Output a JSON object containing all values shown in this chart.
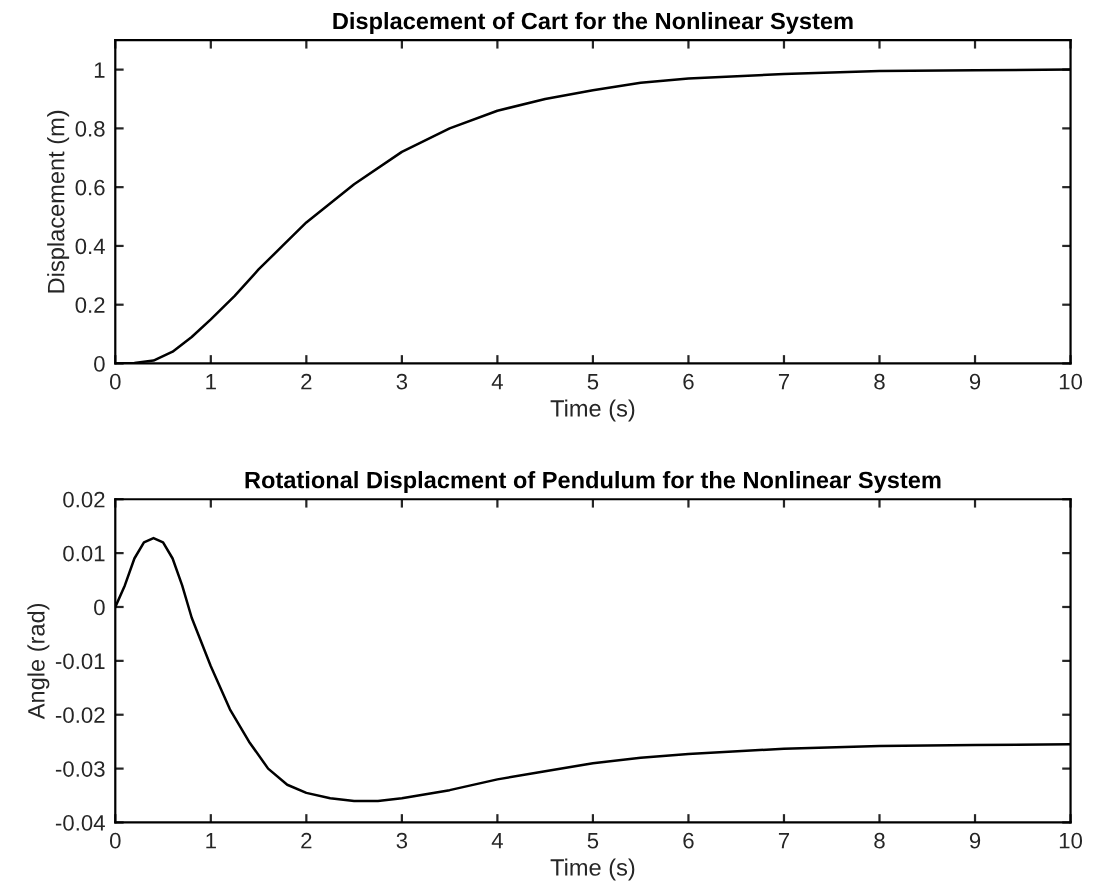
{
  "chart_data": [
    {
      "type": "line",
      "title": "Displacement of Cart for the Nonlinear System",
      "xlabel": "Time (s)",
      "ylabel": "Displacement (m)",
      "xlim": [
        0,
        10
      ],
      "ylim": [
        0,
        1.1
      ],
      "xticks": [
        0,
        1,
        2,
        3,
        4,
        5,
        6,
        7,
        8,
        9,
        10
      ],
      "yticks": [
        0,
        0.2,
        0.4,
        0.6,
        0.8,
        1
      ],
      "grid": false,
      "legend": false,
      "series": [
        {
          "color": "#000000",
          "x": [
            0,
            0.2,
            0.4,
            0.6,
            0.8,
            1.0,
            1.25,
            1.5,
            1.75,
            2.0,
            2.5,
            3.0,
            3.5,
            4.0,
            4.5,
            5.0,
            5.5,
            6.0,
            7.0,
            8.0,
            9.0,
            10
          ],
          "values": [
            0,
            0.002,
            0.01,
            0.04,
            0.09,
            0.15,
            0.23,
            0.32,
            0.4,
            0.48,
            0.61,
            0.72,
            0.8,
            0.86,
            0.9,
            0.93,
            0.955,
            0.97,
            0.985,
            0.995,
            0.998,
            1.0
          ]
        }
      ]
    },
    {
      "type": "line",
      "title": "Rotational Displacment of Pendulum for the Nonlinear System",
      "xlabel": "Time (s)",
      "ylabel": "Angle (rad)",
      "xlim": [
        0,
        10
      ],
      "ylim": [
        -0.04,
        0.02
      ],
      "xticks": [
        0,
        1,
        2,
        3,
        4,
        5,
        6,
        7,
        8,
        9,
        10
      ],
      "yticks": [
        -0.04,
        -0.03,
        -0.02,
        -0.01,
        0,
        0.01,
        0.02
      ],
      "grid": false,
      "legend": false,
      "series": [
        {
          "color": "#000000",
          "x": [
            0,
            0.1,
            0.2,
            0.3,
            0.4,
            0.5,
            0.6,
            0.7,
            0.8,
            1.0,
            1.2,
            1.4,
            1.6,
            1.8,
            2.0,
            2.25,
            2.5,
            2.75,
            3.0,
            3.5,
            4.0,
            4.5,
            5.0,
            5.5,
            6.0,
            7.0,
            8.0,
            9.0,
            10
          ],
          "values": [
            0,
            0.004,
            0.009,
            0.012,
            0.0128,
            0.012,
            0.009,
            0.004,
            -0.002,
            -0.011,
            -0.019,
            -0.025,
            -0.03,
            -0.033,
            -0.0345,
            -0.0355,
            -0.036,
            -0.036,
            -0.0355,
            -0.034,
            -0.032,
            -0.0305,
            -0.029,
            -0.028,
            -0.0273,
            -0.0263,
            -0.0258,
            -0.0256,
            -0.0255
          ]
        }
      ]
    }
  ]
}
